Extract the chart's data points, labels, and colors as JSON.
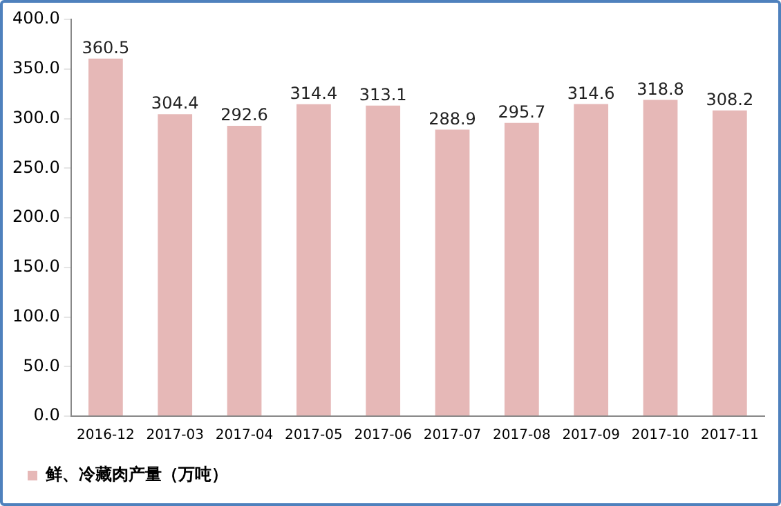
{
  "chart_data": {
    "type": "bar",
    "categories": [
      "2016-12",
      "2017-03",
      "2017-04",
      "2017-05",
      "2017-06",
      "2017-07",
      "2017-08",
      "2017-09",
      "2017-10",
      "2017-11"
    ],
    "series": [
      {
        "name": "鲜、冷藏肉产量（万吨）",
        "color": "#e6b8b7",
        "values": [
          360.5,
          304.4,
          292.6,
          314.4,
          313.1,
          288.9,
          295.7,
          314.6,
          318.8,
          308.2
        ]
      }
    ],
    "ylim": [
      0,
      400
    ],
    "yticks": [
      {
        "value": 0,
        "label": "0.0"
      },
      {
        "value": 50,
        "label": "50.0"
      },
      {
        "value": 100,
        "label": "100.0"
      },
      {
        "value": 150,
        "label": "150.0"
      },
      {
        "value": 200,
        "label": "200.0"
      },
      {
        "value": 250,
        "label": "250.0"
      },
      {
        "value": 300,
        "label": "300.0"
      },
      {
        "value": 350,
        "label": "350.0"
      },
      {
        "value": 400,
        "label": "400.0"
      }
    ],
    "grid": false,
    "legend": "bottom left",
    "data_labels": true
  }
}
